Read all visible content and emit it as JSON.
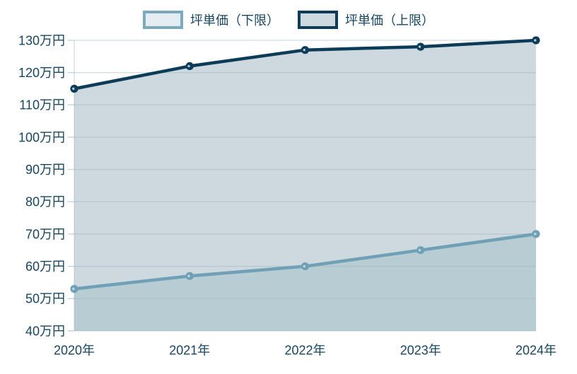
{
  "legend": {
    "items": [
      {
        "label": "坪単価（下限）",
        "swatch_fill": "#e4edf1",
        "swatch_border": "#7ca9be"
      },
      {
        "label": "坪単価（上限）",
        "swatch_fill": "#cdd9df",
        "swatch_border": "#0d3c59"
      }
    ]
  },
  "chart_data": {
    "type": "area",
    "x": [
      2020,
      2021,
      2022,
      2023,
      2024
    ],
    "x_tick_labels": [
      "2020年",
      "2021年",
      "2022年",
      "2023年",
      "2024年"
    ],
    "series": [
      {
        "name": "坪単価（下限）",
        "values": [
          53,
          57,
          60,
          65,
          70
        ],
        "line_color": "#6fa0b6",
        "fill_color": "#b6cad3"
      },
      {
        "name": "坪単価（上限）",
        "values": [
          115,
          122,
          127,
          128,
          130
        ],
        "line_color": "#0d3c59",
        "fill_color": "#cdd9df"
      }
    ],
    "unit_suffix": "万円",
    "ylim": [
      40,
      130
    ],
    "y_tick_step": 10,
    "y_tick_labels": [
      "40万円",
      "50万円",
      "60万円",
      "70万円",
      "80万円",
      "90万円",
      "100万円",
      "110万円",
      "120万円",
      "130万円"
    ],
    "grid": "horizontal-only",
    "legend_position": "top",
    "axis_text_color": "#17465f",
    "grid_color": "#9db4bf"
  }
}
